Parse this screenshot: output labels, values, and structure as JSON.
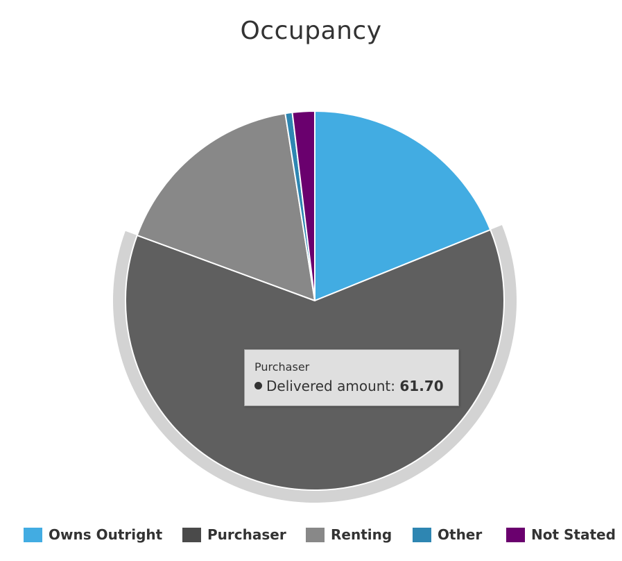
{
  "chart_data": {
    "type": "pie",
    "title": "Occupancy",
    "series": [
      {
        "name": "Delivered amount",
        "slices": [
          {
            "label": "Owns Outright",
            "value": 18.9,
            "color": "#42ACE2"
          },
          {
            "label": "Purchaser",
            "value": 61.7,
            "color": "#5F5F5F",
            "hovered": true
          },
          {
            "label": "Renting",
            "value": 16.9,
            "color": "#888888"
          },
          {
            "label": "Other",
            "value": 0.6,
            "color": "#2E86B2"
          },
          {
            "label": "Not Stated",
            "value": 1.9,
            "color": "#6A006E"
          }
        ]
      }
    ],
    "legend_position": "bottom",
    "legend_swatch_colors": [
      "#42ACE2",
      "#4A4A4A",
      "#888888",
      "#2E86B2",
      "#6A006E"
    ],
    "hover_halo_color": "#D3D3D3"
  },
  "tooltip": {
    "title": "Purchaser",
    "series_name": "Delivered amount",
    "separator": ": ",
    "value": "61.70"
  },
  "legend": {
    "items": [
      {
        "label": "Owns Outright",
        "color": "#42ACE2"
      },
      {
        "label": "Purchaser",
        "color": "#4A4A4A"
      },
      {
        "label": "Renting",
        "color": "#888888"
      },
      {
        "label": "Other",
        "color": "#2E86B2"
      },
      {
        "label": "Not Stated",
        "color": "#6A006E"
      }
    ]
  }
}
